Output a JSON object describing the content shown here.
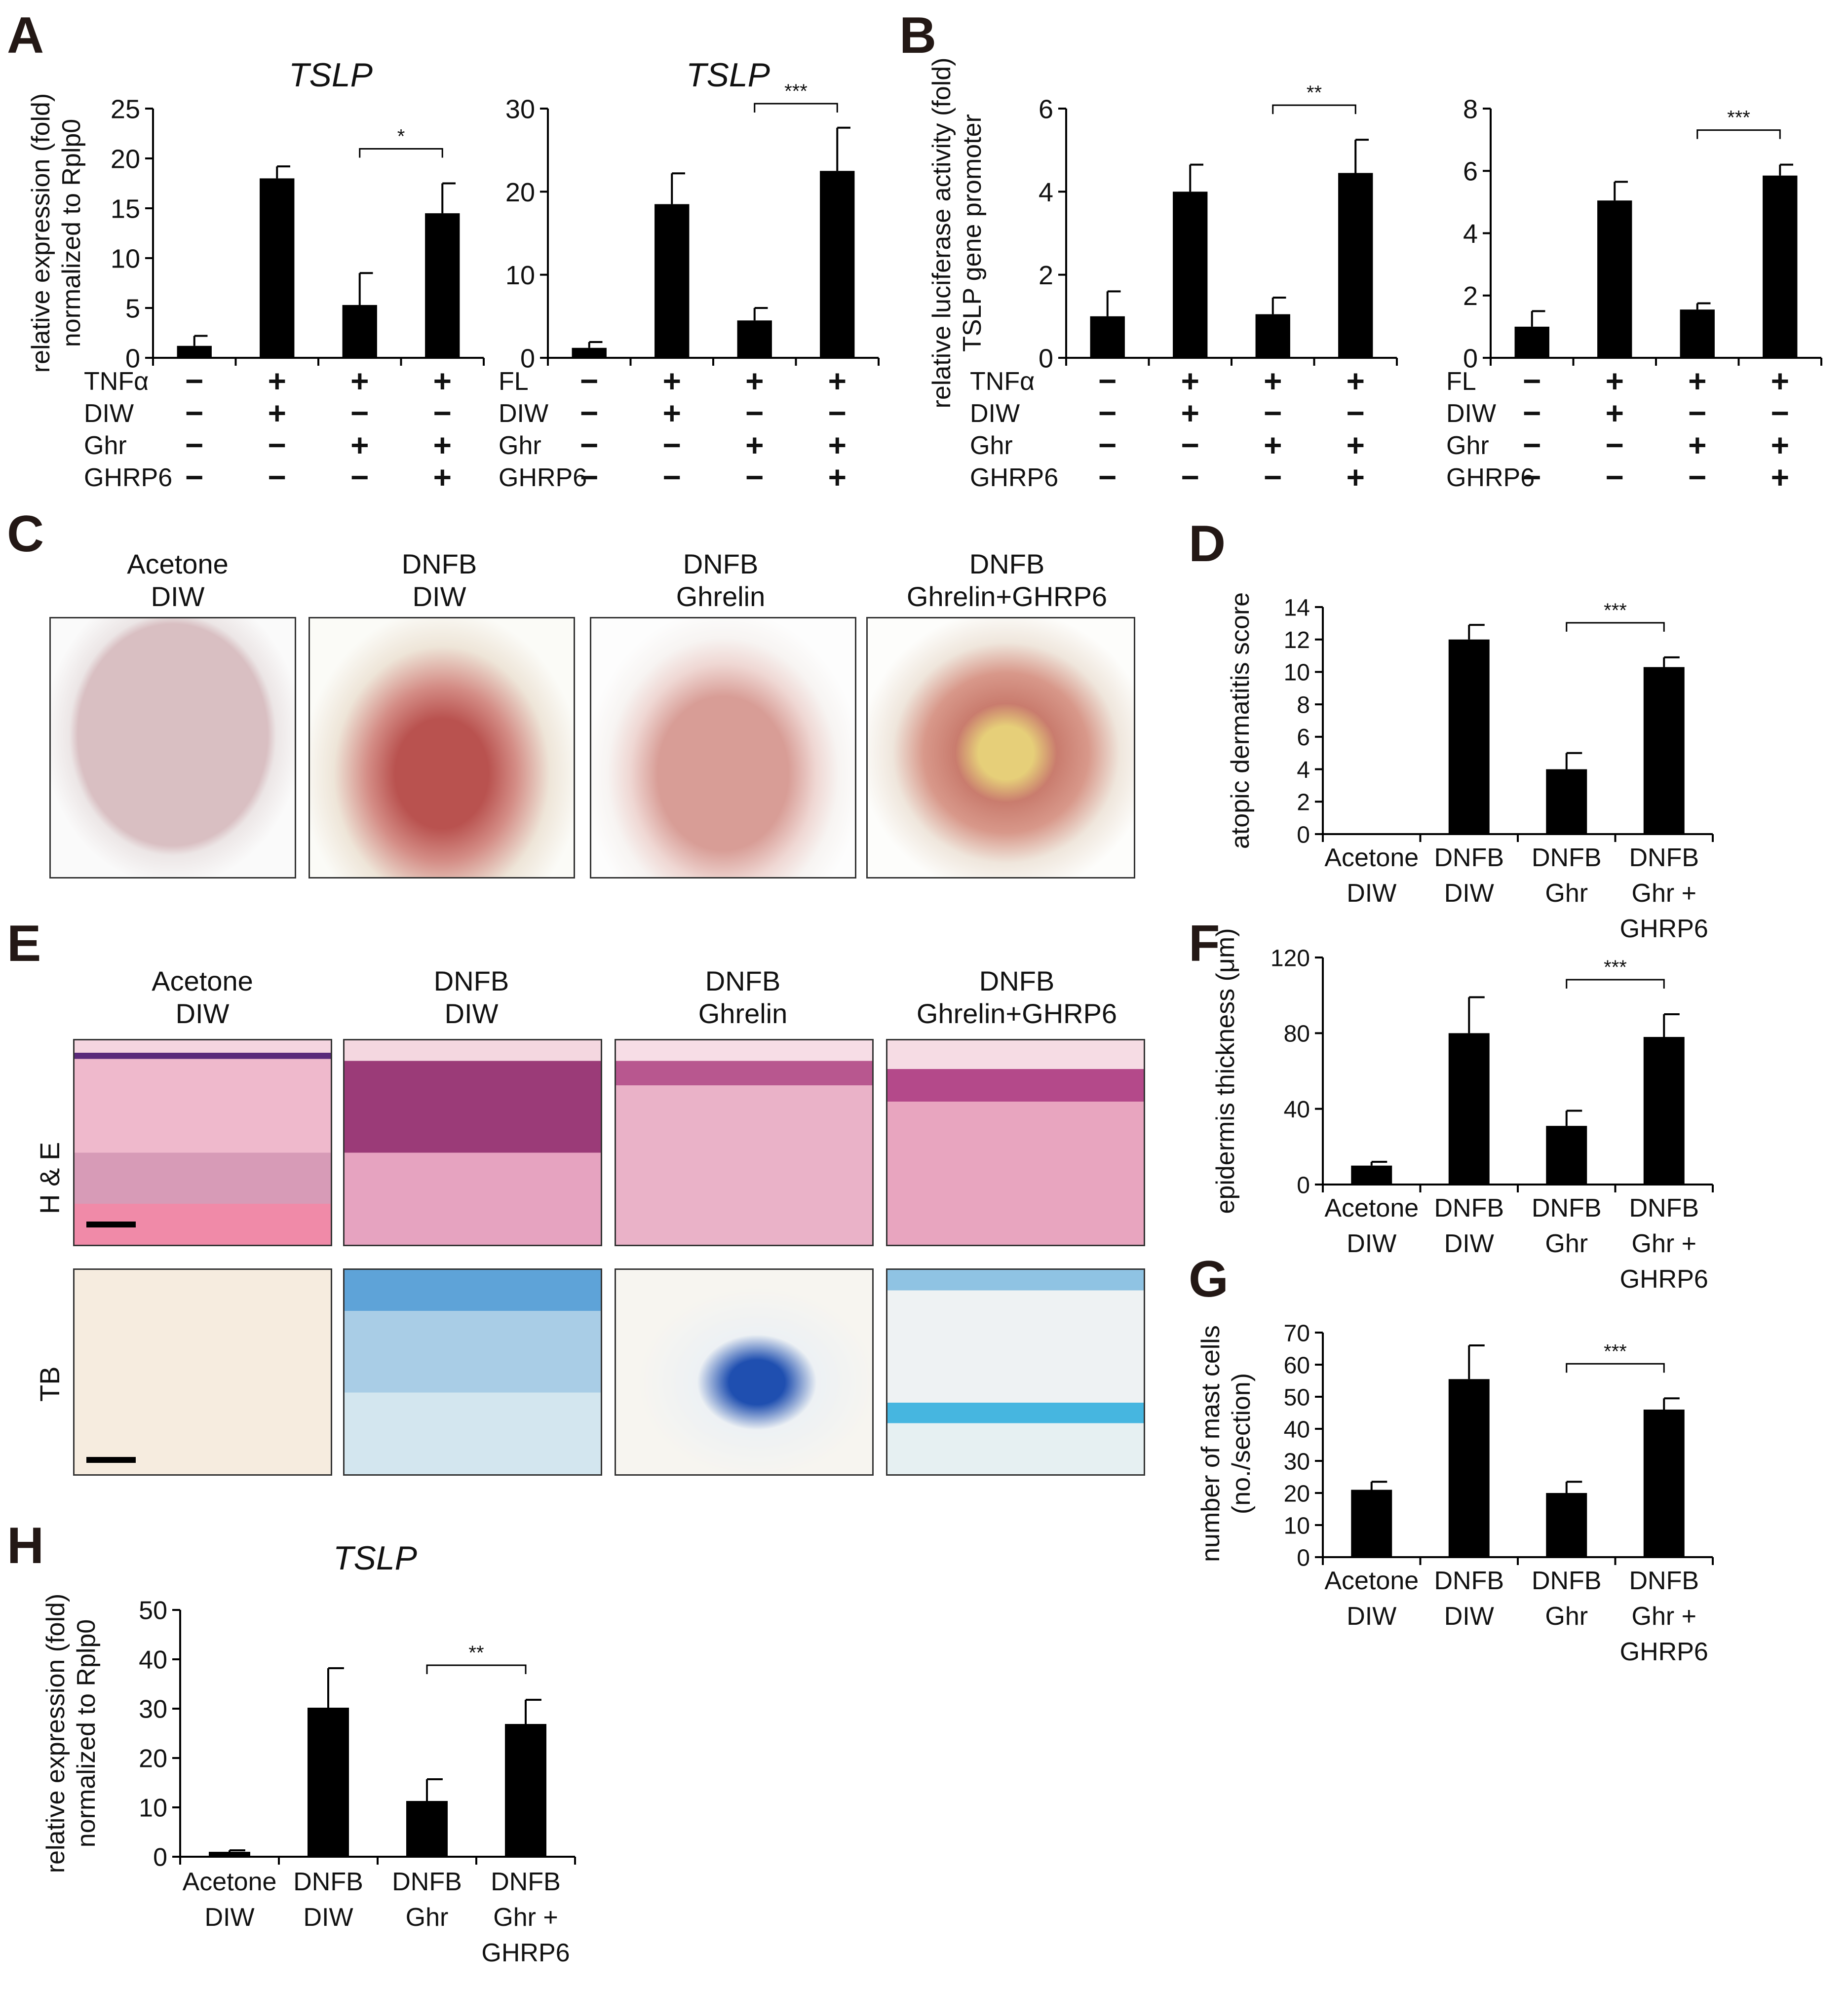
{
  "panel_letters": {
    "A": "A",
    "B": "B",
    "C": "C",
    "D": "D",
    "E": "E",
    "F": "F",
    "G": "G",
    "H": "H"
  },
  "photo_captions_C": [
    "Acetone\nDIW",
    "DNFB\nDIW",
    "DNFB\nGhrelin",
    "DNFB\nGhrelin+GHRP6"
  ],
  "histology_captions_E": [
    "Acetone\nDIW",
    "DNFB\nDIW",
    "DNFB\nGhrelin",
    "DNFB\nGhrelin+GHRP6"
  ],
  "histology_rows": [
    "H & E",
    "TB"
  ],
  "colors": {
    "bar": "#000000",
    "he_bg": "#f2c6d4",
    "tb_bg": "#f6ecdf",
    "skin": "#d8b8b8",
    "fur": "#f4f4f4",
    "lesion": "#c25c57"
  },
  "chart_data": [
    {
      "id": "A1",
      "type": "bar",
      "title": "TSLP",
      "title_italic": true,
      "ylabel": [
        "relative expression (fold)",
        "normalized to Rplp0"
      ],
      "ylim": [
        0,
        25
      ],
      "yticks": [
        0,
        5,
        10,
        15,
        20,
        25
      ],
      "values": [
        1.2,
        18,
        5.3,
        14.5
      ],
      "errors": [
        1.0,
        1.2,
        3.2,
        3.0
      ],
      "significance": {
        "from": 2,
        "to": 3,
        "label": "*"
      },
      "condition_rows": [
        {
          "label": "TNFα",
          "marks": [
            "−",
            "+",
            "+",
            "+"
          ]
        },
        {
          "label": "DIW",
          "marks": [
            "−",
            "+",
            "−",
            "−"
          ]
        },
        {
          "label": "Ghr",
          "marks": [
            "−",
            "−",
            "+",
            "+"
          ]
        },
        {
          "label": "GHRP6",
          "marks": [
            "−",
            "−",
            "−",
            "+"
          ]
        }
      ]
    },
    {
      "id": "A2",
      "type": "bar",
      "title": "TSLP",
      "title_italic": true,
      "ylim": [
        0,
        30
      ],
      "yticks": [
        0,
        10,
        20,
        30
      ],
      "values": [
        1.2,
        18.5,
        4.5,
        22.5
      ],
      "errors": [
        0.7,
        3.7,
        1.5,
        5.2
      ],
      "significance": {
        "from": 2,
        "to": 3,
        "label": "***"
      },
      "condition_rows": [
        {
          "label": "FL",
          "marks": [
            "−",
            "+",
            "+",
            "+"
          ]
        },
        {
          "label": "DIW",
          "marks": [
            "−",
            "+",
            "−",
            "−"
          ]
        },
        {
          "label": "Ghr",
          "marks": [
            "−",
            "−",
            "+",
            "+"
          ]
        },
        {
          "label": "GHRP6",
          "marks": [
            "−",
            "−",
            "−",
            "+"
          ]
        }
      ]
    },
    {
      "id": "B1",
      "type": "bar",
      "ylabel": [
        "relative luciferase activity (fold)",
        "TSLP gene promoter"
      ],
      "ylim": [
        0,
        6
      ],
      "yticks": [
        0,
        2,
        4,
        6
      ],
      "values": [
        1.0,
        4.0,
        1.05,
        4.45
      ],
      "errors": [
        0.6,
        0.65,
        0.4,
        0.8
      ],
      "significance": {
        "from": 2,
        "to": 3,
        "label": "**"
      },
      "condition_rows": [
        {
          "label": "TNFα",
          "marks": [
            "−",
            "+",
            "+",
            "+"
          ]
        },
        {
          "label": "DIW",
          "marks": [
            "−",
            "+",
            "−",
            "−"
          ]
        },
        {
          "label": "Ghr",
          "marks": [
            "−",
            "−",
            "+",
            "+"
          ]
        },
        {
          "label": "GHRP6",
          "marks": [
            "−",
            "−",
            "−",
            "+"
          ]
        }
      ]
    },
    {
      "id": "B2",
      "type": "bar",
      "ylim": [
        0,
        8
      ],
      "yticks": [
        0,
        2,
        4,
        6,
        8
      ],
      "values": [
        1.0,
        5.05,
        1.55,
        5.85
      ],
      "errors": [
        0.5,
        0.6,
        0.2,
        0.35
      ],
      "significance": {
        "from": 2,
        "to": 3,
        "label": "***"
      },
      "condition_rows": [
        {
          "label": "FL",
          "marks": [
            "−",
            "+",
            "+",
            "+"
          ]
        },
        {
          "label": "DIW",
          "marks": [
            "−",
            "+",
            "−",
            "−"
          ]
        },
        {
          "label": "Ghr",
          "marks": [
            "−",
            "−",
            "+",
            "+"
          ]
        },
        {
          "label": "GHRP6",
          "marks": [
            "−",
            "−",
            "−",
            "+"
          ]
        }
      ]
    },
    {
      "id": "D",
      "type": "bar",
      "ylabel": [
        "atopic dermatitis score"
      ],
      "ylim": [
        0,
        14
      ],
      "yticks": [
        0,
        2,
        4,
        6,
        8,
        10,
        12,
        14
      ],
      "values": [
        0,
        12,
        4.0,
        10.3
      ],
      "errors": [
        0,
        0.9,
        1.0,
        0.6
      ],
      "significance": {
        "from": 2,
        "to": 3,
        "label": "***"
      },
      "categories": [
        [
          "Acetone",
          "DIW"
        ],
        [
          "DNFB",
          "DIW"
        ],
        [
          "DNFB",
          "Ghr"
        ],
        [
          "DNFB",
          "Ghr +",
          "GHRP6"
        ]
      ]
    },
    {
      "id": "F",
      "type": "bar",
      "ylabel": [
        "epidermis thickness (μm)"
      ],
      "ylim": [
        0,
        120
      ],
      "yticks": [
        0,
        40,
        80,
        120
      ],
      "values": [
        10,
        80,
        31,
        78
      ],
      "errors": [
        2,
        19,
        8,
        12
      ],
      "significance": {
        "from": 2,
        "to": 3,
        "label": "***"
      },
      "categories": [
        [
          "Acetone",
          "DIW"
        ],
        [
          "DNFB",
          "DIW"
        ],
        [
          "DNFB",
          "Ghr"
        ],
        [
          "DNFB",
          "Ghr +",
          "GHRP6"
        ]
      ]
    },
    {
      "id": "G",
      "type": "bar",
      "ylabel": [
        "number of mast cells",
        "(no./section)"
      ],
      "ylim": [
        0,
        70
      ],
      "yticks": [
        0,
        10,
        20,
        30,
        40,
        50,
        60,
        70
      ],
      "values": [
        21,
        55.5,
        20,
        46
      ],
      "errors": [
        2.5,
        10.5,
        3.5,
        3.5
      ],
      "significance": {
        "from": 2,
        "to": 3,
        "label": "***"
      },
      "categories": [
        [
          "Acetone",
          "DIW"
        ],
        [
          "DNFB",
          "DIW"
        ],
        [
          "DNFB",
          "Ghr"
        ],
        [
          "DNFB",
          "Ghr +",
          "GHRP6"
        ]
      ]
    },
    {
      "id": "H",
      "type": "bar",
      "title": "TSLP",
      "title_italic": true,
      "ylabel": [
        "relative expression (fold)",
        "normalized to Rplp0"
      ],
      "ylim": [
        0,
        50
      ],
      "yticks": [
        0,
        10,
        20,
        30,
        40,
        50
      ],
      "values": [
        1.0,
        30.2,
        11.3,
        26.9
      ],
      "errors": [
        0.3,
        8.0,
        4.4,
        4.9
      ],
      "significance": {
        "from": 2,
        "to": 3,
        "label": "**"
      },
      "categories": [
        [
          "Acetone",
          "DIW"
        ],
        [
          "DNFB",
          "DIW"
        ],
        [
          "DNFB",
          "Ghr"
        ],
        [
          "DNFB",
          "Ghr +",
          "GHRP6"
        ]
      ]
    }
  ]
}
